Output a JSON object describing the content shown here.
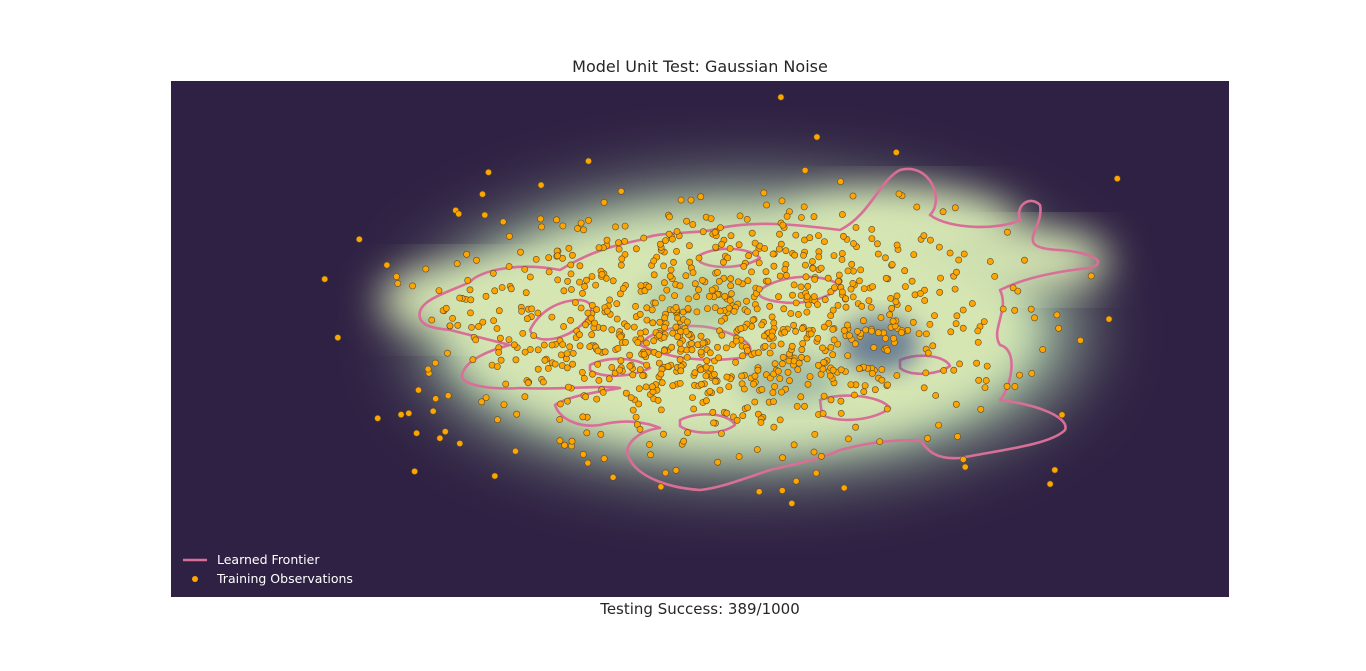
{
  "colors": {
    "background": "#2f2143",
    "frontier": "#d96f97",
    "point": "#ffa500",
    "point_edge": "#5a4a2a",
    "density_low": "#2f2143",
    "density_mid": "#d6e6b3",
    "density_high": "#4a5e8a",
    "inside": "#e8e9f2"
  },
  "chart_data": {
    "type": "scatter",
    "title": "Model Unit Test: Gaussian Noise",
    "xlabel": "Testing Success: 389/1000",
    "ylabel": "",
    "grid": false,
    "axes_visible": false,
    "legend": {
      "placement": "bottom-left",
      "entries": [
        {
          "label": "Learned Frontier",
          "kind": "line",
          "color": "#d96f97"
        },
        {
          "label": "Training Observations",
          "kind": "marker",
          "color": "#ffa500"
        }
      ]
    },
    "xlim": [
      -3.4,
      3.4
    ],
    "ylim": [
      -2.6,
      2.6
    ],
    "series": [
      {
        "name": "Training Observations",
        "kind": "scatter",
        "distribution": "gaussian",
        "n_points": 1000,
        "center": [
          0.0,
          0.0
        ],
        "std": [
          0.9,
          0.6
        ],
        "outliers": [
          [
            2.5,
            0.1
          ],
          [
            -2.2,
            -0.9
          ],
          [
            -2.0,
            -0.85
          ],
          [
            -1.8,
            -1.1
          ],
          [
            -1.95,
            -1.05
          ],
          [
            -0.85,
            -1.35
          ],
          [
            -0.35,
            -1.45
          ],
          [
            -0.25,
            1.3
          ],
          [
            -1.05,
            1.1
          ],
          [
            2.0,
            0.2
          ]
        ]
      },
      {
        "name": "Learned Frontier",
        "kind": "contour",
        "level": "decision boundary"
      }
    ]
  }
}
